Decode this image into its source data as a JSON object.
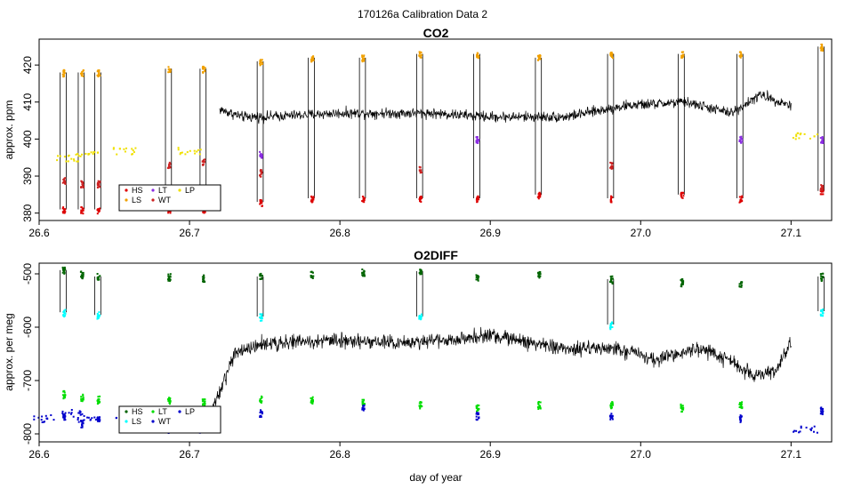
{
  "figure": {
    "title": "170126a   Calibration Data 2"
  },
  "colors": {
    "HS": "#dd0000",
    "LS": "#f0a000",
    "LT": "#8a2be2",
    "WT": "#cc2222",
    "LP": "#f0e000",
    "O2_HS": "#006400",
    "O2_LS": "#00ffff",
    "O2_LT": "#00dd00",
    "O2_WT": "#0000cc",
    "trace": "#000000"
  },
  "chart_data": [
    {
      "type": "line",
      "title": "CO2",
      "xlabel": "",
      "ylabel": "approx. ppm",
      "xlim": [
        26.6,
        27.127
      ],
      "ylim": [
        378,
        427
      ],
      "xticks": [
        "26.6",
        "26.7",
        "26.8",
        "26.9",
        "27.0",
        "27.1"
      ],
      "xtick_values": [
        26.6,
        26.7,
        26.8,
        26.9,
        27.0,
        27.1
      ],
      "yticks": [
        "380",
        "390",
        "400",
        "410",
        "420"
      ],
      "ytick_values": [
        380,
        390,
        400,
        410,
        420
      ],
      "grid": false,
      "legend": {
        "position": "bottom-left",
        "entries": [
          "HS",
          "LS",
          "LT",
          "WT",
          "LP"
        ]
      },
      "calibration_times": [
        26.616,
        26.628,
        26.639,
        26.686,
        26.709,
        26.747,
        26.781,
        26.815,
        26.853,
        26.891,
        26.932,
        26.98,
        27.027,
        27.066,
        27.12
      ],
      "series": [
        {
          "name": "HS",
          "values": [
            381,
            381,
            381,
            381,
            381,
            383,
            384,
            384,
            384,
            384,
            385,
            384,
            385,
            384,
            386
          ]
        },
        {
          "name": "LS",
          "values": [
            418,
            418,
            418,
            419,
            419,
            421,
            422,
            422,
            423,
            423,
            422,
            423,
            423,
            423,
            425
          ]
        },
        {
          "name": "LT",
          "values": [
            null,
            null,
            null,
            null,
            null,
            396,
            null,
            null,
            null,
            400,
            null,
            null,
            null,
            400,
            400
          ]
        },
        {
          "name": "WT",
          "values": [
            389,
            388,
            388,
            393,
            394,
            391,
            null,
            null,
            392,
            null,
            null,
            393,
            null,
            null,
            387
          ]
        },
        {
          "name": "LP",
          "x": [
            26.619,
            26.632,
            26.657,
            26.699,
            27.109
          ],
          "values": [
            395,
            396,
            397,
            397,
            401
          ]
        }
      ],
      "baseline": {
        "x": [
          26.72,
          26.735,
          26.75,
          26.8,
          26.86,
          26.9,
          26.95,
          26.99,
          27.03,
          27.06,
          27.08,
          27.1
        ],
        "values": [
          408,
          406,
          406,
          407,
          407,
          406,
          406,
          409,
          410,
          407,
          412,
          409
        ]
      }
    },
    {
      "type": "line",
      "title": "O2DIFF",
      "xlabel": "day of year",
      "ylabel": "approx. per meg",
      "xlim": [
        26.6,
        27.127
      ],
      "ylim": [
        -815,
        -480
      ],
      "xticks": [
        "26.6",
        "26.7",
        "26.8",
        "26.9",
        "27.0",
        "27.1"
      ],
      "xtick_values": [
        26.6,
        26.7,
        26.8,
        26.9,
        27.0,
        27.1
      ],
      "yticks": [
        "-800",
        "-700",
        "-600",
        "-500"
      ],
      "ytick_values": [
        -800,
        -700,
        -600,
        -500
      ],
      "grid": false,
      "legend": {
        "position": "bottom-left",
        "entries": [
          "HS",
          "LS",
          "LT",
          "WT",
          "LP"
        ]
      },
      "calibration_times": [
        26.616,
        26.628,
        26.639,
        26.686,
        26.709,
        26.747,
        26.781,
        26.815,
        26.853,
        26.891,
        26.932,
        26.98,
        27.027,
        27.066,
        27.12
      ],
      "series": [
        {
          "name": "HS",
          "values": [
            -493,
            -500,
            -505,
            -505,
            -508,
            -505,
            -500,
            -497,
            -495,
            -505,
            -500,
            -510,
            -515,
            -520,
            -505
          ]
        },
        {
          "name": "LS",
          "values": [
            -572,
            null,
            -577,
            null,
            null,
            -580,
            null,
            null,
            -580,
            null,
            null,
            -595,
            null,
            null,
            -570
          ]
        },
        {
          "name": "LT",
          "values": [
            -725,
            -730,
            -735,
            -735,
            -740,
            -735,
            -735,
            -740,
            -745,
            -750,
            -745,
            -745,
            -750,
            -745,
            null
          ]
        },
        {
          "name": "WT",
          "values": [
            -765,
            -780,
            -770,
            -790,
            -790,
            -760,
            null,
            -750,
            null,
            -765,
            null,
            -765,
            null,
            -770,
            -755
          ]
        },
        {
          "name": "LP",
          "x": [
            26.604,
            26.62,
            26.632,
            26.657,
            26.699,
            27.109
          ],
          "values": [
            -770,
            -760,
            -770,
            -775,
            -790,
            -790
          ]
        }
      ],
      "baseline": {
        "x": [
          26.715,
          26.73,
          26.75,
          26.8,
          26.85,
          26.9,
          26.95,
          26.985,
          27.01,
          27.04,
          27.06,
          27.075,
          27.09,
          27.1
        ],
        "values": [
          -760,
          -650,
          -630,
          -625,
          -630,
          -615,
          -640,
          -640,
          -660,
          -640,
          -665,
          -690,
          -680,
          -630
        ]
      }
    }
  ]
}
